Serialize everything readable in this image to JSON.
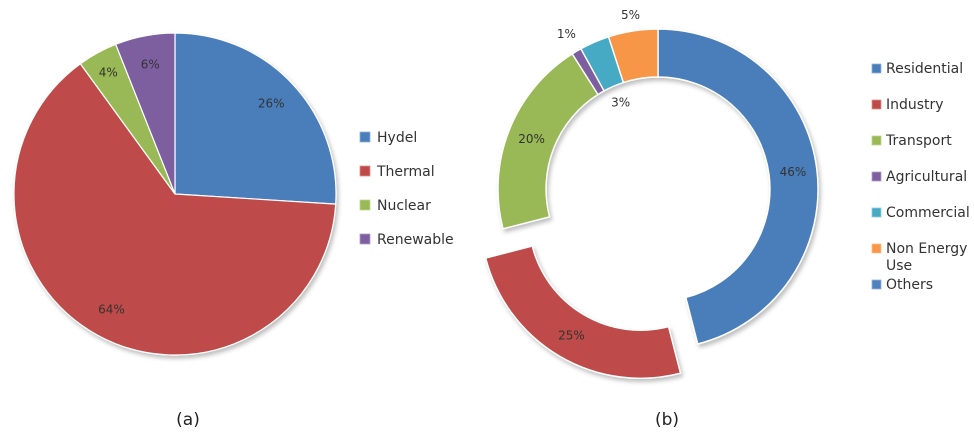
{
  "chart_data": [
    {
      "type": "pie",
      "caption": "(a)",
      "categories": [
        "Hydel",
        "Thermal",
        "Nuclear",
        "Renewable"
      ],
      "values": [
        26,
        64,
        4,
        6
      ],
      "labels": [
        "26%",
        "64%",
        "4%",
        "6%"
      ],
      "colors": [
        "#4a7ebb",
        "#be4b48",
        "#98b954",
        "#7d5fa0"
      ],
      "legend_position": "right"
    },
    {
      "type": "pie",
      "style": "donut",
      "caption": "(b)",
      "categories": [
        "Residential",
        "Industry",
        "Transport",
        "Agricultural",
        "Commercial",
        "Non Energy Use",
        "Others"
      ],
      "legend_labels": [
        [
          "Residential"
        ],
        [
          "Industry"
        ],
        [
          "Transport"
        ],
        [
          "Agricultural"
        ],
        [
          "Commercial"
        ],
        [
          "Non Energy",
          "Use"
        ],
        [
          "Others"
        ]
      ],
      "values": [
        46,
        25,
        20,
        1,
        3,
        5,
        0
      ],
      "labels": [
        "46%",
        "25%",
        "20%",
        "1%",
        "3%",
        "5%",
        ""
      ],
      "colors": [
        "#4a7ebb",
        "#be4b48",
        "#98b954",
        "#7d5fa0",
        "#46aac5",
        "#f79646",
        "#4f81bd"
      ],
      "exploded": [
        "Industry"
      ],
      "legend_position": "right"
    }
  ]
}
